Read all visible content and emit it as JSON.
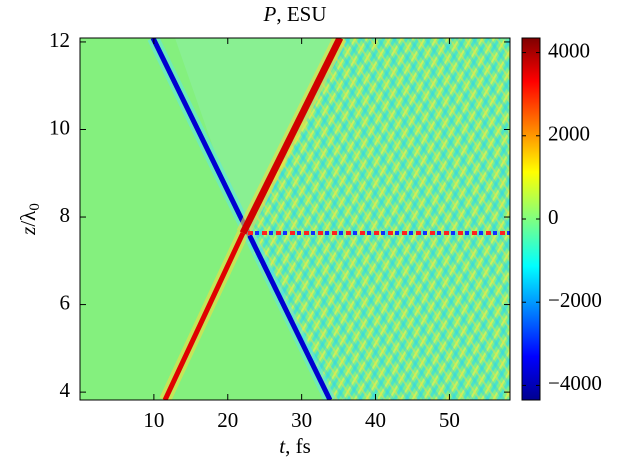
{
  "chart_data": {
    "type": "heatmap",
    "title": {
      "symbol": "P",
      "text": ", ESU"
    },
    "x_label": {
      "symbol": "t",
      "text": ", fs"
    },
    "y_label": {
      "symbol": "z",
      "text": "/λ",
      "subscript": "0"
    },
    "xlim": [
      0,
      58.2
    ],
    "xticks": [
      10,
      20,
      30,
      40,
      50
    ],
    "ylim": [
      3.82,
      12.09
    ],
    "yticks": [
      4,
      6,
      8,
      10,
      12
    ],
    "colormap": "jet",
    "clim": [
      -4350,
      4350
    ],
    "cticks": [
      {
        "value": -4000,
        "label": "−4000"
      },
      {
        "value": -2000,
        "label": "−2000"
      },
      0,
      2000,
      4000
    ]
  }
}
